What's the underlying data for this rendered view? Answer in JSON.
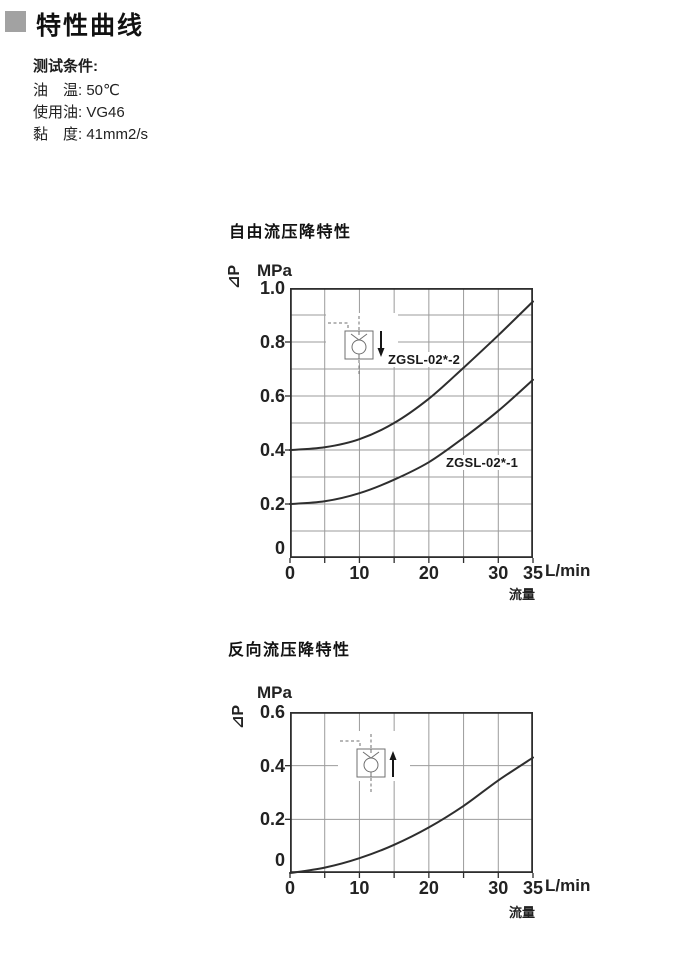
{
  "header": {
    "title": "特性曲线"
  },
  "test_conditions": {
    "title": "测试条件:",
    "lines": [
      "油　温: 50℃",
      "使用油: VG46",
      "黏　度: 41mm2/s"
    ]
  },
  "colors": {
    "bullet_gray": "#a2a2a2",
    "grid_gray": "#9b9b9b",
    "line_dark": "#2e2e2e"
  },
  "icons": {
    "chart1_symbol": "pilot-check-valve-free-flow-arrow-down",
    "chart2_symbol": "pilot-check-valve-reverse-flow-arrow-up"
  },
  "chart_data": [
    {
      "type": "line",
      "title": "自由流压降特性",
      "y_unit": "MPa",
      "ylabel": "⊿P",
      "x_unit": "L/min",
      "xlabel": "流量",
      "xlim": [
        0,
        35
      ],
      "ylim": [
        0,
        1.0
      ],
      "x_grid_step": 5,
      "y_grid_step": 0.1,
      "x_tick_values": [
        0,
        10,
        20,
        30,
        35
      ],
      "x_tick_labels": [
        "0",
        "10",
        "20",
        "30",
        "35"
      ],
      "y_tick_values": [
        1.0,
        0.8,
        0.6,
        0.4,
        0.2,
        0
      ],
      "y_tick_labels": [
        "1.0",
        "0.8",
        "0.6",
        "0.4",
        "0.2",
        "0"
      ],
      "x": [
        0,
        5,
        10,
        15,
        20,
        25,
        30,
        35
      ],
      "series": [
        {
          "name": "ZGSL-02*-2",
          "values": [
            0.4,
            0.41,
            0.44,
            0.5,
            0.59,
            0.705,
            0.825,
            0.95
          ]
        },
        {
          "name": "ZGSL-02*-1",
          "values": [
            0.2,
            0.21,
            0.24,
            0.29,
            0.355,
            0.445,
            0.545,
            0.66
          ]
        }
      ],
      "grid": true,
      "legend_position": "inline-labels"
    },
    {
      "type": "line",
      "title": "反向流压降特性",
      "y_unit": "MPa",
      "ylabel": "⊿P",
      "x_unit": "L/min",
      "xlabel": "流量",
      "xlim": [
        0,
        35
      ],
      "ylim": [
        0,
        0.6
      ],
      "x_grid_step": 5,
      "y_grid_step": 0.2,
      "x_tick_values": [
        0,
        10,
        20,
        30,
        35
      ],
      "x_tick_labels": [
        "0",
        "10",
        "20",
        "30",
        "35"
      ],
      "y_tick_values": [
        0.6,
        0.4,
        0.2,
        0
      ],
      "y_tick_labels": [
        "0.6",
        "0.4",
        "0.2",
        "0"
      ],
      "x": [
        0,
        5,
        10,
        15,
        20,
        25,
        30,
        35
      ],
      "series": [
        {
          "name": "",
          "values": [
            0,
            0.02,
            0.055,
            0.105,
            0.17,
            0.25,
            0.345,
            0.43
          ]
        }
      ],
      "grid": true,
      "legend_position": "none"
    }
  ]
}
